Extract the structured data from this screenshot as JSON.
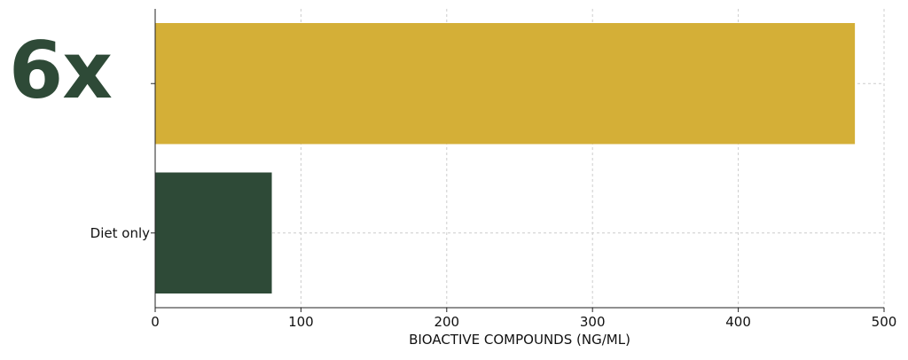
{
  "headline": "6x",
  "colors": {
    "gold": "#d4af37",
    "forest": "#2e4a37",
    "grid": "#cccccc",
    "axis": "#222222",
    "text": "#111111"
  },
  "chart_data": {
    "type": "bar",
    "orientation": "horizontal",
    "categories": [
      "",
      "Diet only"
    ],
    "values": [
      480,
      80
    ],
    "bar_colors": [
      "#d4af37",
      "#2e4a37"
    ],
    "xlabel": "BIOACTIVE COMPOUNDS (NG/ML)",
    "ylabel": "",
    "xlim": [
      0,
      500
    ],
    "xticks": [
      0,
      100,
      200,
      300,
      400,
      500
    ],
    "grid": true
  }
}
